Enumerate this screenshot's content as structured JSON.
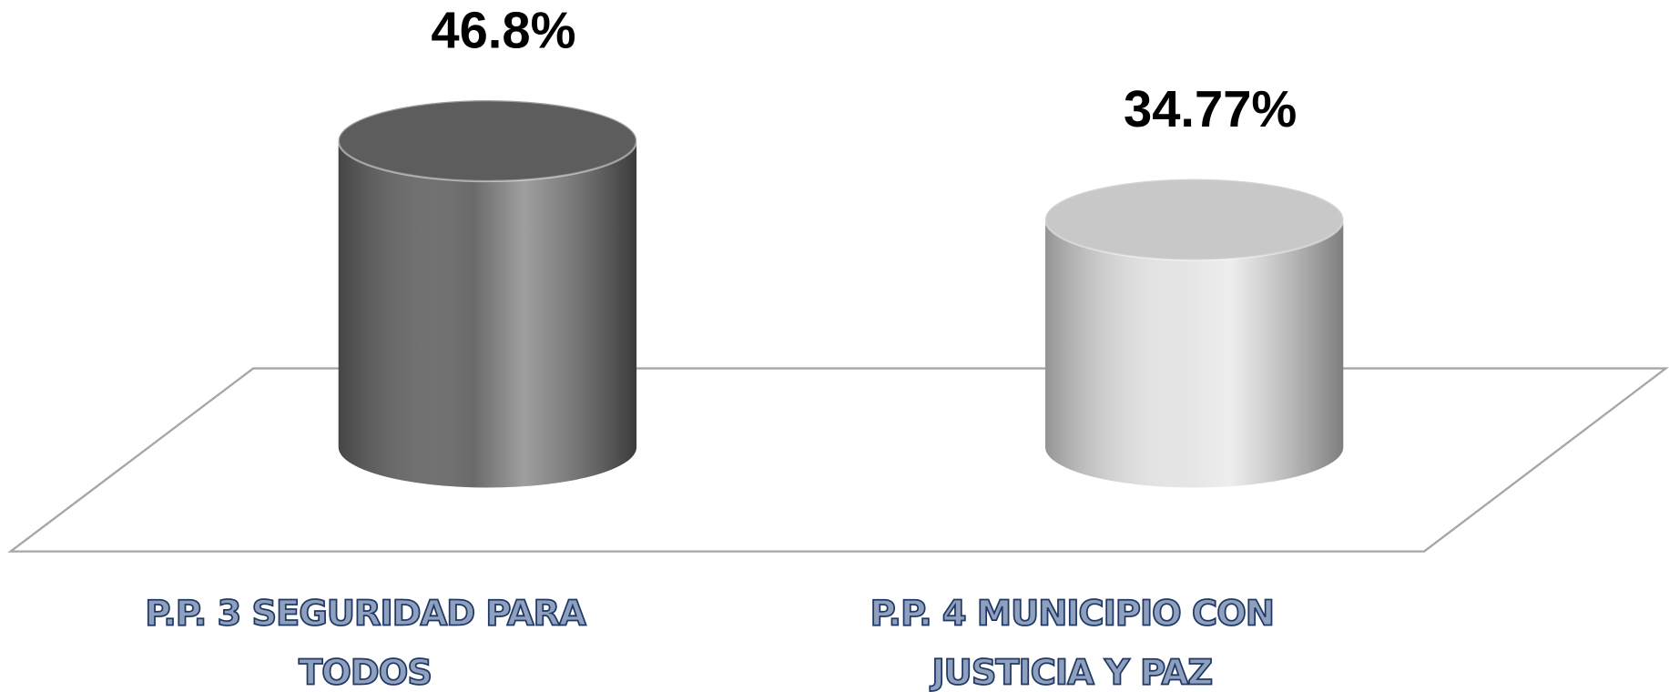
{
  "chart_data": {
    "type": "cylinder",
    "categories": [
      "P.P. 3 SEGURIDAD PARA TODOS",
      "P.P. 4 MUNICIPIO CON JUSTICIA Y PAZ"
    ],
    "values": [
      46.8,
      34.77
    ],
    "value_labels": [
      "46.8%",
      "34.77%"
    ],
    "colors": [
      "#6a6a6a",
      "#e4e4e4"
    ]
  }
}
